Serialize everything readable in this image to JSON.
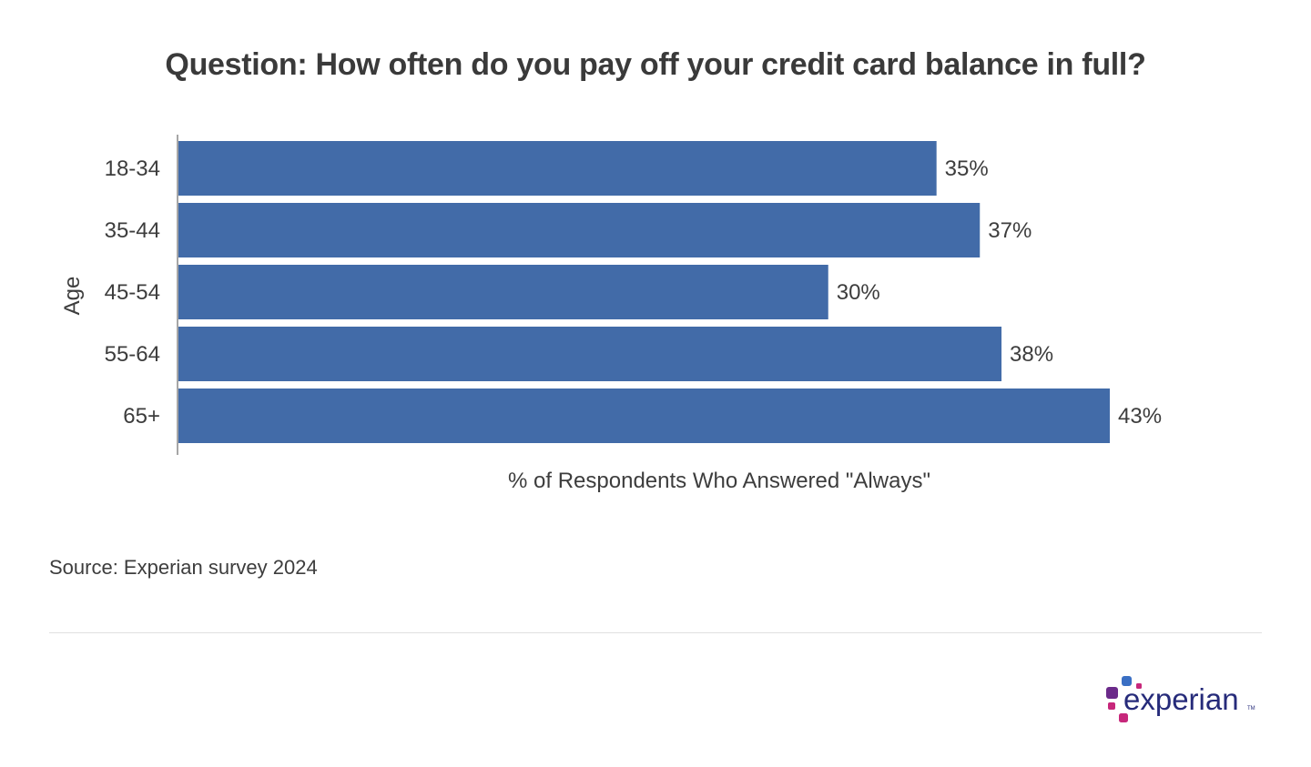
{
  "chart_data": {
    "type": "bar",
    "orientation": "horizontal",
    "title": "Question: How often do you pay off your credit card balance in full?",
    "categories": [
      "18-34",
      "35-44",
      "45-54",
      "55-64",
      "65+"
    ],
    "values": [
      35,
      37,
      30,
      38,
      43
    ],
    "data_labels": [
      "35%",
      "37%",
      "30%",
      "38%",
      "43%"
    ],
    "xlabel": "% of Respondents Who Answered \"Always\"",
    "ylabel": "Age",
    "xlim": [
      0,
      43
    ],
    "grid": false,
    "bar_color": "#426ba8"
  },
  "source": "Source: Experian survey 2024",
  "logo": {
    "text": "experian",
    "colors": [
      "#3a6fc4",
      "#6b2a8a",
      "#c7277b",
      "#262b7a"
    ]
  }
}
